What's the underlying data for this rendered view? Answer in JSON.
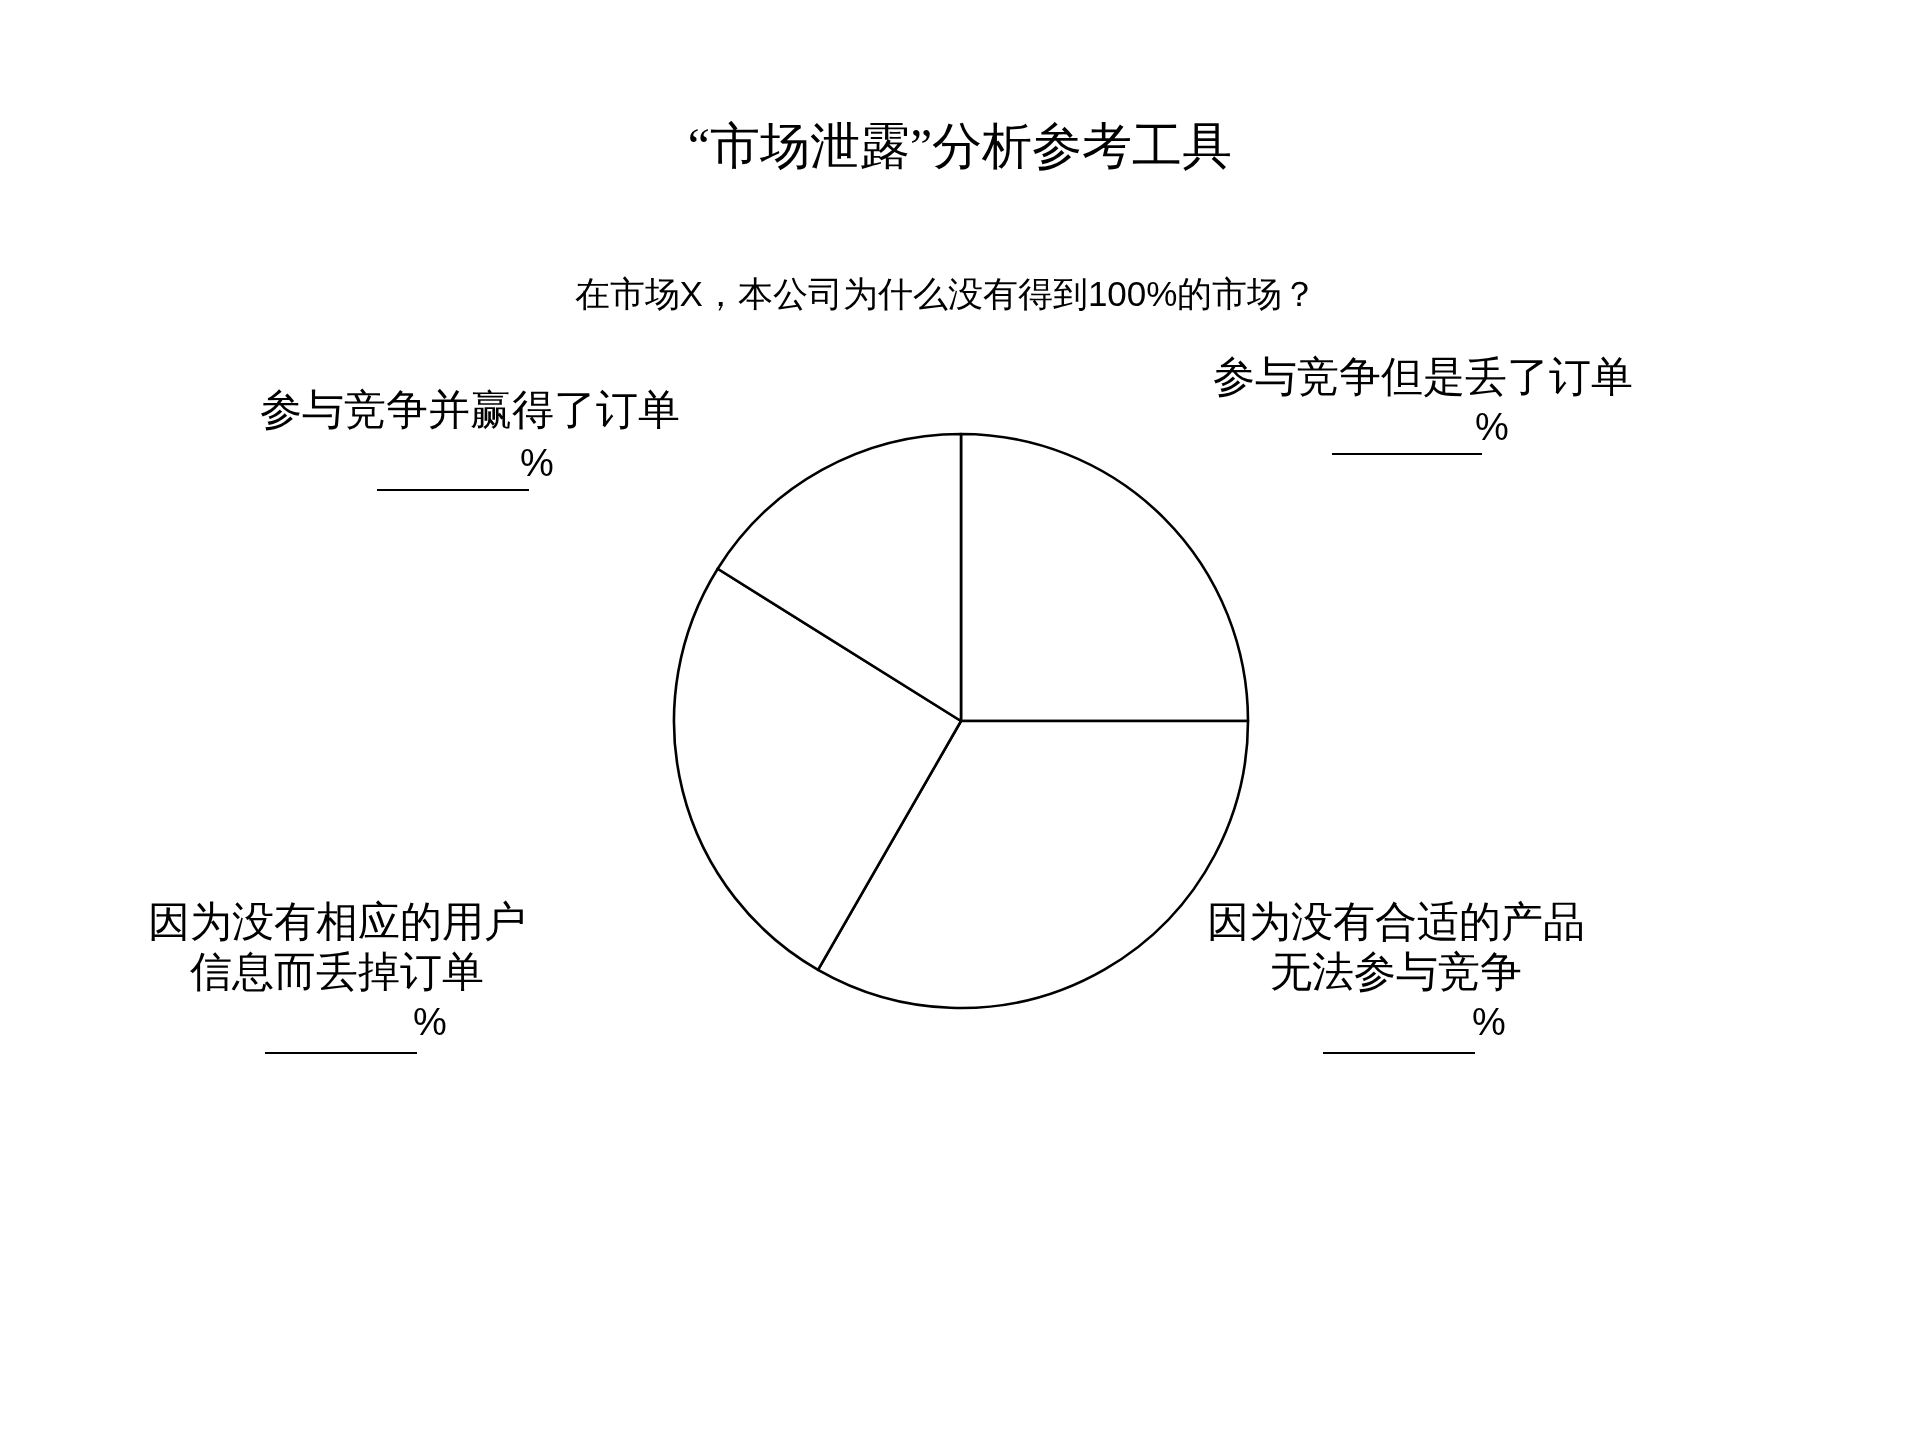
{
  "chart_data": {
    "type": "pie",
    "title": "“市场泄露”分析参考工具",
    "subtitle": "在市场X，本公司为什么没有得到100%的市场？",
    "categories": [
      "参与竞争但是丢了订单",
      "因为没有合适的产品无法参与竞争",
      "因为没有相应的用户信息而丢掉订单",
      "参与竞争并赢得了订单"
    ],
    "values": [
      25,
      33.3,
      25.6,
      16.1
    ],
    "colors": [
      "#ffffff",
      "#ffffff",
      "#ffffff",
      "#ffffff"
    ],
    "value_labels": [
      "%",
      "%",
      "%",
      "%"
    ]
  }
}
